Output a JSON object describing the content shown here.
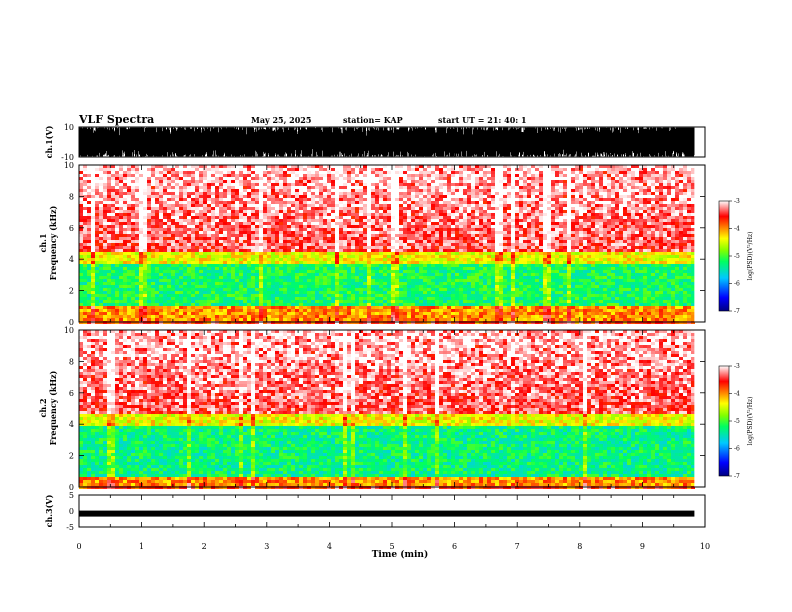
{
  "header": {
    "title": "VLF Spectra",
    "date": "May 25, 2025",
    "station": "station= KAP",
    "start": "start  UT  =   21: 40: 1"
  },
  "chart_data": [
    {
      "type": "line",
      "name": "ch1-waveform",
      "ylabel": "ch.1(V)",
      "ylim": [
        -10,
        10
      ],
      "yticks": [
        "10",
        "-10"
      ],
      "x_range": [
        0,
        9.83
      ]
    },
    {
      "type": "heatmap",
      "name": "ch1-spectrogram",
      "ylabel_line1": "ch.1",
      "ylabel_line2": "Frequency (kHz)",
      "ylim": [
        0,
        10
      ],
      "yticks": [
        "0",
        "2",
        "4",
        "6",
        "8",
        "10"
      ],
      "x_range": [
        0,
        9.83
      ],
      "bands_khz": [
        {
          "from": 0,
          "to": 1.1,
          "level": -4.0
        },
        {
          "from": 1.1,
          "to": 3.6,
          "level": -5.2
        },
        {
          "from": 3.6,
          "to": 4.5,
          "level": -4.4
        },
        {
          "from": 4.5,
          "to": 10,
          "level": -3.4
        }
      ],
      "colorbar": {
        "label": "log(PSD)(V²/Hz)",
        "range": [
          -7,
          -3
        ],
        "ticks": [
          "-3",
          "-4",
          "-5",
          "-6",
          "-7"
        ]
      }
    },
    {
      "type": "heatmap",
      "name": "ch2-spectrogram",
      "ylabel_line1": "ch.2",
      "ylabel_line2": "Frequency (kHz)",
      "ylim": [
        0,
        10
      ],
      "yticks": [
        "0",
        "2",
        "4",
        "6",
        "8",
        "10"
      ],
      "x_range": [
        0,
        9.83
      ],
      "bands_khz": [
        {
          "from": 0,
          "to": 0.6,
          "level": -4.0
        },
        {
          "from": 0.6,
          "to": 3.8,
          "level": -5.3
        },
        {
          "from": 3.8,
          "to": 4.6,
          "level": -4.4
        },
        {
          "from": 4.6,
          "to": 10,
          "level": -3.4
        }
      ],
      "colorbar": {
        "label": "log(PSD)(V²/Hz)",
        "range": [
          -7,
          -3
        ],
        "ticks": [
          "-3",
          "-4",
          "-5",
          "-6",
          "-7"
        ]
      }
    },
    {
      "type": "line",
      "name": "ch3-waveform",
      "ylabel": "ch.3(V)",
      "ylim": [
        -5,
        5
      ],
      "yticks": [
        "5",
        "0",
        "-5"
      ],
      "value": -0.8,
      "x_range": [
        0,
        9.83
      ]
    }
  ],
  "xaxis": {
    "label": "Time (min)",
    "range": [
      0,
      10
    ],
    "ticks": [
      "0",
      "1",
      "2",
      "3",
      "4",
      "5",
      "6",
      "7",
      "8",
      "9",
      "10"
    ]
  }
}
